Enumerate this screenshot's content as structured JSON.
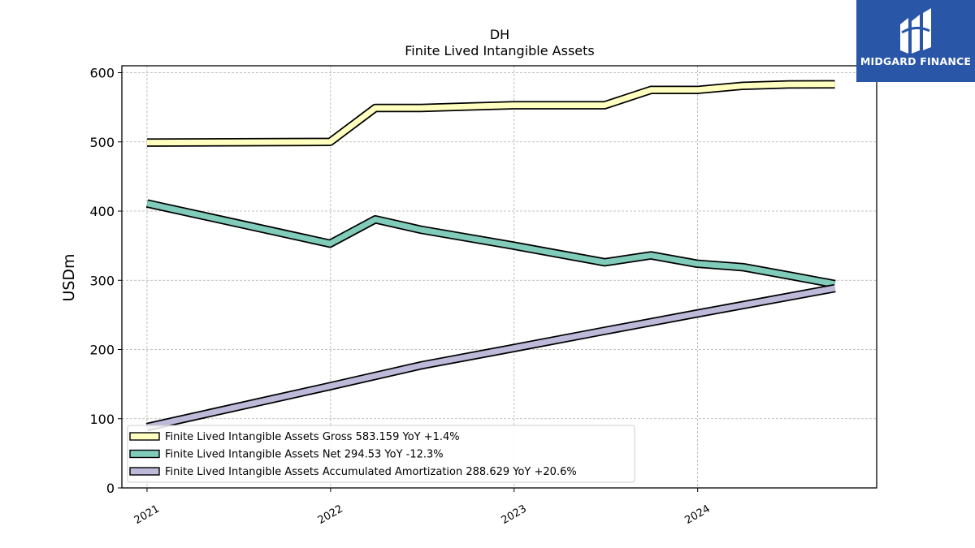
{
  "chart_data": {
    "type": "line",
    "title": "DH",
    "subtitle": "Finite Lived Intangible Assets",
    "xlabel": "",
    "ylabel": "USDm",
    "ylim": [
      0,
      610
    ],
    "yticks": [
      0,
      100,
      200,
      300,
      400,
      500,
      600
    ],
    "xlim": [
      "2020-11-12",
      "2024-12-22"
    ],
    "xticks": [
      "2021",
      "2022",
      "2023",
      "2024"
    ],
    "grid": true,
    "legend_position": "lower-left",
    "series": [
      {
        "name": "Finite Lived Intangible Assets Gross",
        "legend_label": "Finite Lived Intangible Assets Gross  583.159 YoY +1.4%",
        "color": "#ffffbf",
        "points": [
          [
            "2021-01-01",
            499
          ],
          [
            "2021-12-31",
            500
          ],
          [
            "2022-03-31",
            549
          ],
          [
            "2022-06-30",
            549
          ],
          [
            "2022-09-30",
            551
          ],
          [
            "2022-12-31",
            553
          ],
          [
            "2023-06-30",
            553
          ],
          [
            "2023-09-30",
            575
          ],
          [
            "2023-12-31",
            575
          ],
          [
            "2024-03-31",
            581
          ],
          [
            "2024-06-30",
            583
          ],
          [
            "2024-09-30",
            583.159
          ]
        ]
      },
      {
        "name": "Finite Lived Intangible Assets Net",
        "legend_label": "Finite Lived Intangible Assets Net  294.53 YoY -12.3%",
        "color": "#80cbba",
        "points": [
          [
            "2021-01-01",
            411
          ],
          [
            "2021-12-31",
            353
          ],
          [
            "2022-03-31",
            388
          ],
          [
            "2022-06-30",
            373
          ],
          [
            "2022-12-31",
            350
          ],
          [
            "2023-06-30",
            326
          ],
          [
            "2023-09-30",
            336
          ],
          [
            "2023-12-31",
            324
          ],
          [
            "2024-03-31",
            319
          ],
          [
            "2024-06-30",
            307
          ],
          [
            "2024-09-30",
            294.53
          ]
        ]
      },
      {
        "name": "Finite Lived Intangible Assets Accumulated Amortization",
        "legend_label": "Finite Lived Intangible Assets Accumulated Amortization  288.629 YoY +20.6%",
        "color": "#bcb9d9",
        "points": [
          [
            "2021-01-01",
            88
          ],
          [
            "2021-12-31",
            147
          ],
          [
            "2022-06-30",
            177
          ],
          [
            "2022-12-31",
            202
          ],
          [
            "2023-06-30",
            227
          ],
          [
            "2023-12-31",
            252
          ],
          [
            "2024-09-30",
            288.629
          ]
        ]
      }
    ]
  },
  "logo": {
    "text": "MIDGARD FINANCE",
    "background": "#2a56a8"
  }
}
